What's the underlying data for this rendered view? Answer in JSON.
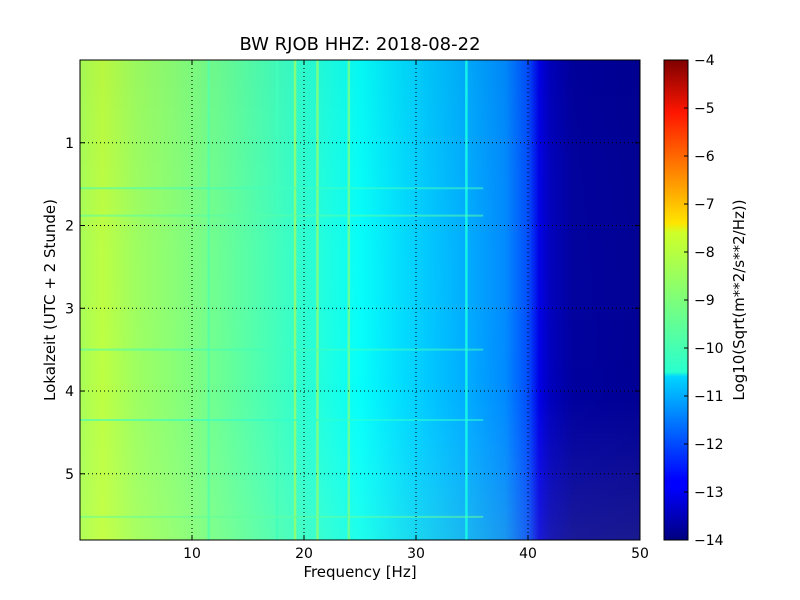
{
  "chart_data": {
    "type": "heatmap",
    "title": "BW RJOB HHZ: 2018-08-22",
    "xlabel": "Frequency [Hz]",
    "ylabel": "Lokalzeit (UTC + 2 Stunde)",
    "xlim": [
      0,
      50
    ],
    "ylim": [
      0,
      5.8
    ],
    "y_inverted": true,
    "x_ticks": [
      10,
      20,
      30,
      40,
      50
    ],
    "y_ticks": [
      1,
      2,
      3,
      4,
      5
    ],
    "grid": true,
    "colormap": "jet",
    "colorbar": {
      "label": "Log10(Sqrt(m**2/s**2/Hz))",
      "range": [
        -14,
        -4
      ],
      "ticks": [
        -4,
        -5,
        -6,
        -7,
        -8,
        -9,
        -10,
        -11,
        -12,
        -13,
        -14
      ]
    },
    "background_spectrum": [
      {
        "f": 0,
        "v": -8.6
      },
      {
        "f": 2,
        "v": -8.4
      },
      {
        "f": 5,
        "v": -8.7
      },
      {
        "f": 10,
        "v": -9.0
      },
      {
        "f": 15,
        "v": -9.4
      },
      {
        "f": 20,
        "v": -9.8
      },
      {
        "f": 25,
        "v": -10.2
      },
      {
        "f": 30,
        "v": -10.7
      },
      {
        "f": 35,
        "v": -11.1
      },
      {
        "f": 38,
        "v": -11.4
      },
      {
        "f": 40,
        "v": -12.0
      },
      {
        "f": 41,
        "v": -13.0
      },
      {
        "f": 42,
        "v": -13.4
      },
      {
        "f": 44,
        "v": -13.7
      },
      {
        "f": 50,
        "v": -13.8
      }
    ],
    "spectral_lines": [
      {
        "f": 19.2,
        "v": -8.8
      },
      {
        "f": 21.2,
        "v": -8.9
      },
      {
        "f": 24.0,
        "v": -9.1
      },
      {
        "f": 17.6,
        "v": -9.6
      },
      {
        "f": 11.5,
        "v": -9.4
      },
      {
        "f": 34.5,
        "v": -10.0
      }
    ],
    "transient_events": [
      {
        "t": 1.55,
        "v": -9.6
      },
      {
        "t": 1.88,
        "v": -9.4
      },
      {
        "t": 3.5,
        "v": -9.6
      },
      {
        "t": 4.35,
        "v": -9.8
      },
      {
        "t": 5.52,
        "v": -9.3
      }
    ]
  }
}
